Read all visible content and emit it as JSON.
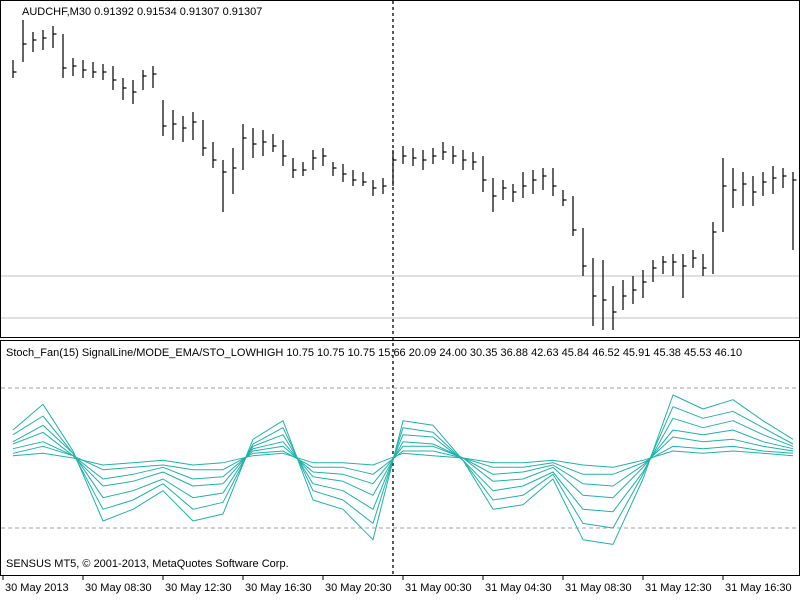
{
  "chart_data": [
    {
      "type": "ohlc",
      "title": "AUDCHF,M30  0.91392 0.91534 0.91307 0.91307",
      "color": "#000000",
      "x": [
        1,
        2,
        3,
        4,
        5,
        6,
        7,
        8,
        9,
        10,
        11,
        12,
        13,
        14,
        15,
        16,
        17,
        18,
        19,
        20,
        21,
        22,
        23,
        24,
        25,
        26,
        27,
        28,
        29,
        30,
        31,
        32,
        33,
        34,
        35,
        36,
        37,
        38,
        39,
        40,
        41,
        42,
        43,
        44,
        45,
        46,
        47,
        48,
        49,
        50,
        51,
        52,
        53,
        54,
        55,
        56,
        57,
        58,
        59,
        60,
        61,
        62,
        63,
        64,
        65,
        66,
        67,
        68,
        69,
        70,
        71,
        72,
        73,
        74,
        75,
        76,
        77,
        78,
        79
      ],
      "high": [
        0.9195,
        0.9215,
        0.9209,
        0.921,
        0.9212,
        0.9208,
        0.9196,
        0.9195,
        0.9194,
        0.9193,
        0.9192,
        0.9186,
        0.9185,
        0.919,
        0.9192,
        0.9175,
        0.917,
        0.9167,
        0.9169,
        0.9165,
        0.9154,
        0.9145,
        0.9151,
        0.9163,
        0.9161,
        0.916,
        0.9158,
        0.9155,
        0.9146,
        0.9144,
        0.915,
        0.9151,
        0.9144,
        0.9143,
        0.914,
        0.9139,
        0.9135,
        0.9136,
        0.915,
        0.9152,
        0.9151,
        0.915,
        0.9151,
        0.9154,
        0.9152,
        0.915,
        0.9149,
        0.9147,
        0.9136,
        0.9135,
        0.9133,
        0.9139,
        0.914,
        0.9141,
        0.9141,
        0.913,
        0.9127,
        0.9111,
        0.9096,
        0.9095,
        0.9082,
        0.9085,
        0.9087,
        0.909,
        0.9095,
        0.9097,
        0.9098,
        0.9098,
        0.91,
        0.9098,
        0.9114,
        0.9146,
        0.9141,
        0.9139,
        0.9137,
        0.9139,
        0.9142,
        0.9141,
        0.9139
      ],
      "low": [
        0.9186,
        0.9194,
        0.9199,
        0.92,
        0.9201,
        0.9186,
        0.9187,
        0.9186,
        0.9186,
        0.9185,
        0.918,
        0.9175,
        0.9173,
        0.918,
        0.9181,
        0.9157,
        0.9155,
        0.9154,
        0.9155,
        0.9147,
        0.9141,
        0.9119,
        0.9128,
        0.914,
        0.9146,
        0.9147,
        0.9149,
        0.9142,
        0.9136,
        0.9137,
        0.914,
        0.9142,
        0.9137,
        0.9134,
        0.9132,
        0.9132,
        0.9127,
        0.9128,
        0.9132,
        0.9143,
        0.9142,
        0.914,
        0.9143,
        0.9145,
        0.9143,
        0.914,
        0.914,
        0.9129,
        0.9119,
        0.9125,
        0.9124,
        0.9126,
        0.9128,
        0.913,
        0.9127,
        0.9122,
        0.9107,
        0.9087,
        0.9062,
        0.906,
        0.906,
        0.907,
        0.9073,
        0.9076,
        0.9084,
        0.9088,
        0.9087,
        0.9076,
        0.9091,
        0.9087,
        0.9088,
        0.9109,
        0.9121,
        0.9122,
        0.9122,
        0.9127,
        0.9128,
        0.9131,
        0.91
      ],
      "close": [
        0.9189,
        0.9203,
        0.9205,
        0.9206,
        0.9208,
        0.9191,
        0.9192,
        0.919,
        0.9189,
        0.9189,
        0.9185,
        0.9181,
        0.9179,
        0.9187,
        0.9188,
        0.9162,
        0.9163,
        0.9161,
        0.9164,
        0.9151,
        0.9145,
        0.9139,
        0.9141,
        0.9156,
        0.9153,
        0.9154,
        0.9152,
        0.9147,
        0.914,
        0.914,
        0.9146,
        0.9147,
        0.9141,
        0.9138,
        0.9135,
        0.9134,
        0.9131,
        0.9132,
        0.9145,
        0.9147,
        0.9146,
        0.9145,
        0.9147,
        0.9149,
        0.9147,
        0.9145,
        0.9144,
        0.9135,
        0.9127,
        0.9131,
        0.9129,
        0.9132,
        0.9135,
        0.9137,
        0.9132,
        0.9125,
        0.911,
        0.9092,
        0.9077,
        0.9075,
        0.9069,
        0.9077,
        0.908,
        0.9084,
        0.9091,
        0.9094,
        0.9094,
        0.9092,
        0.9096,
        0.9091,
        0.9109,
        0.9132,
        0.913,
        0.9133,
        0.9129,
        0.9134,
        0.9136,
        0.9137,
        0.9135
      ],
      "xlim": [
        -0.3,
        79.7
      ],
      "ylim": [
        0.9057,
        0.9224
      ],
      "levels": [
        0.9087,
        0.9066
      ],
      "level_color": "#c0c0c0",
      "level_style": "solid",
      "crosshair_x": 39
    },
    {
      "type": "line",
      "title": "Stoch_Fan(15) SignalLine/MODE_EMA/STO_LOWHIGH 10.75 10.75 10.75 15.66 20.09 24.00 30.35 36.88 42.63 45.84 46.52 45.91 45.38 45.53 46.10",
      "annotation": "SENSUS MT5, © 2001-2013, MetaQuotes Software Corp.",
      "x": [
        1,
        4,
        7,
        10,
        13,
        16,
        19,
        22,
        25,
        28,
        31,
        34,
        37,
        40,
        43,
        46,
        49,
        52,
        55,
        58,
        61,
        64,
        67,
        70,
        73,
        76,
        79
      ],
      "series": [
        {
          "color": "#20b2aa",
          "values": [
            62,
            73,
            53,
            23,
            28,
            36,
            23,
            26,
            58,
            66,
            32,
            28,
            15,
            66,
            64,
            49,
            28,
            30,
            41,
            15,
            13,
            41,
            77,
            71,
            75,
            66,
            58
          ]
        },
        {
          "color": "#20b2aa",
          "values": [
            60,
            68,
            52,
            28,
            32,
            39,
            28,
            31,
            56,
            63,
            36,
            32,
            22,
            63,
            61,
            49,
            32,
            34,
            43,
            22,
            20,
            43,
            72,
            67,
            70,
            63,
            56
          ]
        },
        {
          "color": "#20b2aa",
          "values": [
            57,
            64,
            52,
            33,
            36,
            41,
            33,
            35,
            55,
            60,
            39,
            36,
            28,
            60,
            59,
            49,
            36,
            38,
            44,
            28,
            27,
            44,
            67,
            63,
            66,
            60,
            55
          ]
        },
        {
          "color": "#20b2aa",
          "values": [
            56,
            61,
            51,
            38,
            40,
            44,
            38,
            39,
            54,
            57,
            42,
            40,
            34,
            57,
            56,
            50,
            40,
            41,
            46,
            34,
            33,
            46,
            62,
            60,
            62,
            57,
            54
          ]
        },
        {
          "color": "#20b2aa",
          "values": [
            54,
            57,
            51,
            41,
            43,
            46,
            41,
            42,
            53,
            55,
            44,
            43,
            39,
            55,
            55,
            50,
            43,
            44,
            47,
            39,
            38,
            47,
            59,
            57,
            58,
            55,
            53
          ]
        },
        {
          "color": "#20b2aa",
          "values": [
            52,
            55,
            51,
            45,
            46,
            47,
            45,
            45,
            52,
            53,
            46,
            46,
            43,
            53,
            53,
            50,
            46,
            46,
            48,
            43,
            43,
            48,
            55,
            54,
            55,
            53,
            52
          ]
        },
        {
          "color": "#20b2aa",
          "values": [
            51,
            52,
            50,
            47,
            48,
            49,
            47,
            48,
            51,
            52,
            48,
            48,
            47,
            52,
            51,
            50,
            48,
            48,
            49,
            47,
            46,
            49,
            53,
            52,
            53,
            52,
            51
          ]
        }
      ],
      "xlim": [
        -0.3,
        79.7
      ],
      "ylim": [
        0,
        100
      ],
      "levels": [
        80,
        20
      ],
      "level_color": "#a0a0a0",
      "level_style": "dashed",
      "xticks": [
        {
          "value": 0,
          "label": "30 May 2013"
        },
        {
          "value": 8,
          "label": "30 May 08:30"
        },
        {
          "value": 16,
          "label": "30 May 12:30"
        },
        {
          "value": 24,
          "label": "30 May 16:30"
        },
        {
          "value": 32,
          "label": "30 May 20:30"
        },
        {
          "value": 40,
          "label": "31 May 00:30"
        },
        {
          "value": 48,
          "label": "31 May 04:30"
        },
        {
          "value": 56,
          "label": "31 May 08:30"
        },
        {
          "value": 64,
          "label": "31 May 12:30"
        },
        {
          "value": 72,
          "label": "31 May 16:30"
        }
      ]
    }
  ]
}
